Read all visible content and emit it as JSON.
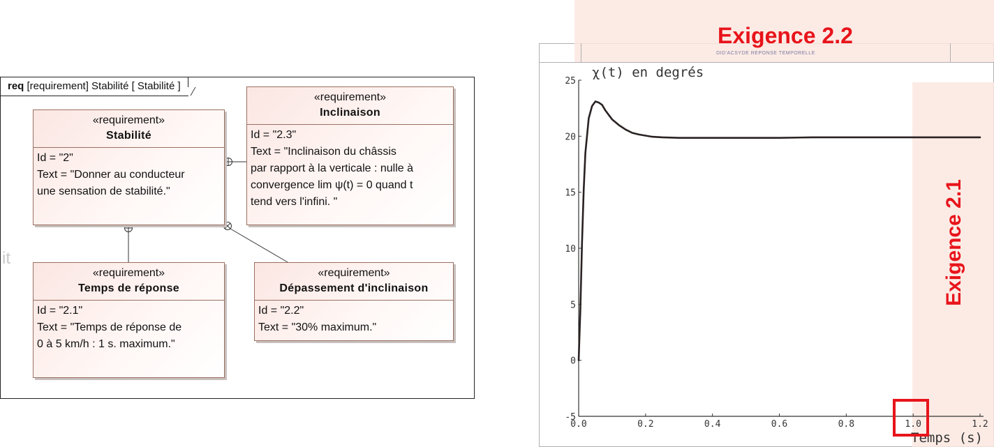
{
  "diagram": {
    "frame_keyword": "req",
    "frame_title": "[requirement] Stabilité [ Stabilité ]",
    "ghost_text": "it",
    "requirements": {
      "stabilite": {
        "stereotype": "«requirement»",
        "name": "Stabilité",
        "lines": [
          "Id = \"2\"",
          "Text = \"Donner au conducteur",
          "une sensation de stabilité.\""
        ]
      },
      "inclinaison": {
        "stereotype": "«requirement»",
        "name": "Inclinaison",
        "lines": [
          "Id = \"2.3\"",
          "Text = \"Inclinaison du châssis",
          "par rapport à la verticale : nulle à",
          "convergence lim ψ(t) = 0 quand t",
          "tend vers l'infini. \""
        ]
      },
      "temps": {
        "stereotype": "«requirement»",
        "name": "Temps de réponse",
        "lines": [
          "Id = \"2.1\"",
          "Text = \"Temps de réponse de",
          "0 à 5 km/h : 1 s. maximum.\""
        ]
      },
      "depassement": {
        "stereotype": "«requirement»",
        "name": "Dépassement d'inclinaison",
        "lines": [
          "Id = \"2.2\"",
          "Text = \"30% maximum.\""
        ]
      }
    },
    "relations": [
      {
        "from": "stabilite",
        "to": "inclinaison",
        "type": "containment"
      },
      {
        "from": "stabilite",
        "to": "temps",
        "type": "containment"
      },
      {
        "from": "stabilite",
        "to": "depassement",
        "type": "containment"
      }
    ]
  },
  "annotations": {
    "exigence_22": "Exigence 2.2",
    "exigence_21": "Exigence 2.1",
    "highlight_color": "#e8141b"
  },
  "chart": {
    "header_title": "DID'ACSYDE   REPONSE TEMPORELLE"
  },
  "chart_data": {
    "type": "line",
    "title": "χ(t) en degrés",
    "xlabel": "Temps (s)",
    "ylabel": "",
    "xlim": [
      0,
      1.2
    ],
    "ylim": [
      -5,
      25
    ],
    "xticks": [
      "0.0",
      "0.2",
      "0.4",
      "0.6",
      "0.8",
      "1.0",
      "1.2"
    ],
    "yticks": [
      "-5",
      "0",
      "5",
      "10",
      "15",
      "20",
      "25"
    ],
    "grid": false,
    "series": [
      {
        "x": [
          0,
          0.005,
          0.01,
          0.015,
          0.02,
          0.03,
          0.04,
          0.05,
          0.06,
          0.07,
          0.08,
          0.09,
          0.1,
          0.12,
          0.14,
          0.16,
          0.18,
          0.2,
          0.22,
          0.25,
          0.3,
          0.35,
          0.4,
          0.5,
          0.6,
          0.7,
          0.8,
          0.9,
          1.0,
          1.1,
          1.2
        ],
        "values": [
          0,
          4.5,
          10.5,
          15.2,
          18.5,
          21.6,
          22.7,
          23.1,
          23.0,
          22.8,
          22.3,
          21.9,
          21.5,
          21.0,
          20.6,
          20.3,
          20.15,
          20.05,
          19.95,
          19.9,
          19.85,
          19.85,
          19.85,
          19.85,
          19.85,
          19.9,
          19.9,
          19.9,
          19.9,
          19.9,
          19.9
        ],
        "color": "#2a2222"
      }
    ]
  }
}
